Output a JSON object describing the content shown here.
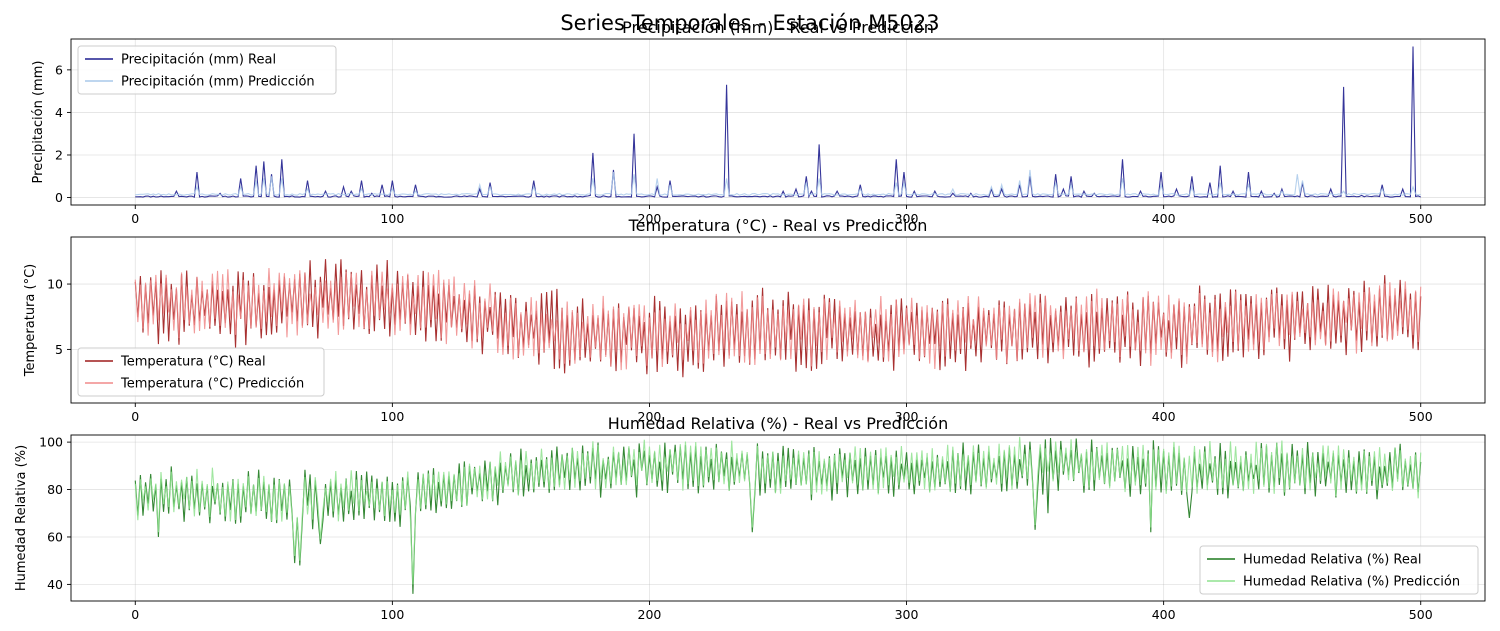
{
  "figure_title": "Series Temporales - Estación M5023",
  "chart_data": [
    {
      "type": "line",
      "title": "Precipitación (mm) - Real vs Predicción",
      "ylabel": "Precipitación (mm)",
      "xlabel": "",
      "xlim": [
        -25,
        525
      ],
      "ylim": [
        -0.35,
        7.45
      ],
      "xticks": [
        0,
        100,
        200,
        300,
        400,
        500
      ],
      "yticks": [
        0,
        2,
        4,
        6
      ],
      "grid": true,
      "legend": "top-left",
      "series": [
        {
          "name": "Precipitación (mm) Real",
          "color": "#1f1f8f",
          "base": 0.05,
          "noise": 0.06,
          "seed": 11,
          "spikes": [
            [
              16,
              0.3
            ],
            [
              24,
              1.2
            ],
            [
              33,
              0.2
            ],
            [
              41,
              0.9
            ],
            [
              47,
              1.5
            ],
            [
              50,
              1.7
            ],
            [
              53,
              1.1
            ],
            [
              57,
              1.8
            ],
            [
              67,
              0.8
            ],
            [
              74,
              0.3
            ],
            [
              81,
              0.5
            ],
            [
              84,
              0.3
            ],
            [
              88,
              0.8
            ],
            [
              92,
              0.2
            ],
            [
              96,
              0.6
            ],
            [
              100,
              0.8
            ],
            [
              109,
              0.6
            ],
            [
              134,
              0.4
            ],
            [
              138,
              0.7
            ],
            [
              155,
              0.8
            ],
            [
              177,
              0.1
            ],
            [
              178,
              2.1
            ],
            [
              186,
              1.3
            ],
            [
              194,
              3.0
            ],
            [
              203,
              0.5
            ],
            [
              208,
              0.8
            ],
            [
              230,
              5.3
            ],
            [
              252,
              0.3
            ],
            [
              257,
              0.4
            ],
            [
              261,
              1.0
            ],
            [
              263,
              0.3
            ],
            [
              266,
              2.5
            ],
            [
              273,
              0.3
            ],
            [
              282,
              0.6
            ],
            [
              296,
              1.8
            ],
            [
              299,
              1.2
            ],
            [
              303,
              0.3
            ],
            [
              311,
              0.3
            ],
            [
              318,
              0.2
            ],
            [
              325,
              0.2
            ],
            [
              333,
              0.4
            ],
            [
              337,
              0.4
            ],
            [
              344,
              0.6
            ],
            [
              348,
              1.0
            ],
            [
              358,
              1.1
            ],
            [
              361,
              0.4
            ],
            [
              364,
              1.0
            ],
            [
              369,
              0.3
            ],
            [
              373,
              0.2
            ],
            [
              384,
              1.8
            ],
            [
              391,
              0.3
            ],
            [
              399,
              1.2
            ],
            [
              405,
              0.4
            ],
            [
              411,
              1.0
            ],
            [
              418,
              0.7
            ],
            [
              422,
              1.5
            ],
            [
              427,
              0.3
            ],
            [
              433,
              1.2
            ],
            [
              438,
              0.3
            ],
            [
              443,
              0.2
            ],
            [
              446,
              0.4
            ],
            [
              454,
              0.7
            ],
            [
              465,
              0.4
            ],
            [
              470,
              5.2
            ],
            [
              477,
              0.1
            ],
            [
              485,
              0.6
            ],
            [
              493,
              0.4
            ],
            [
              497,
              7.1
            ]
          ]
        },
        {
          "name": "Precipitación (mm) Predicción",
          "color": "#a9c9ea",
          "base": 0.15,
          "noise": 0.08,
          "seed": 23,
          "spikes": [
            [
              24,
              0.5
            ],
            [
              41,
              0.5
            ],
            [
              47,
              0.8
            ],
            [
              50,
              0.9
            ],
            [
              53,
              1.0
            ],
            [
              57,
              0.9
            ],
            [
              67,
              0.4
            ],
            [
              88,
              0.4
            ],
            [
              100,
              0.4
            ],
            [
              109,
              0.3
            ],
            [
              134,
              0.6
            ],
            [
              138,
              0.5
            ],
            [
              155,
              0.5
            ],
            [
              178,
              0.9
            ],
            [
              186,
              1.2
            ],
            [
              194,
              1.1
            ],
            [
              203,
              0.9
            ],
            [
              208,
              0.6
            ],
            [
              230,
              0.9
            ],
            [
              261,
              0.7
            ],
            [
              266,
              0.9
            ],
            [
              282,
              0.4
            ],
            [
              296,
              0.7
            ],
            [
              299,
              0.7
            ],
            [
              318,
              0.4
            ],
            [
              333,
              0.5
            ],
            [
              337,
              0.6
            ],
            [
              344,
              0.8
            ],
            [
              348,
              1.3
            ],
            [
              358,
              0.7
            ],
            [
              364,
              0.6
            ],
            [
              384,
              0.9
            ],
            [
              399,
              0.6
            ],
            [
              411,
              0.5
            ],
            [
              422,
              0.7
            ],
            [
              433,
              0.6
            ],
            [
              446,
              0.3
            ],
            [
              452,
              1.1
            ],
            [
              454,
              0.8
            ],
            [
              470,
              0.3
            ],
            [
              485,
              0.4
            ],
            [
              497,
              0.5
            ]
          ]
        }
      ]
    },
    {
      "type": "line",
      "title": "Temperatura (°C) - Real vs Predicción",
      "ylabel": "Temperatura (°C)",
      "xlabel": "",
      "xlim": [
        -25,
        525
      ],
      "ylim": [
        0.9,
        13.6
      ],
      "xticks": [
        0,
        100,
        200,
        300,
        400,
        500
      ],
      "yticks": [
        5,
        10
      ],
      "grid": true,
      "legend": "bottom-left",
      "series": [
        {
          "name": "Temperatura (°C) Real",
          "color": "#9e1b1b",
          "amp": 2.8,
          "seed": 5,
          "trend": [
            [
              0,
              8.5
            ],
            [
              40,
              8.3
            ],
            [
              80,
              9.0
            ],
            [
              120,
              8.2
            ],
            [
              150,
              6.5
            ],
            [
              200,
              6.0
            ],
            [
              250,
              6.5
            ],
            [
              300,
              6.3
            ],
            [
              350,
              6.8
            ],
            [
              400,
              6.5
            ],
            [
              450,
              7.2
            ],
            [
              500,
              7.8
            ]
          ]
        },
        {
          "name": "Temperatura (°C) Predicción",
          "color": "#f08a8a",
          "amp": 2.6,
          "seed": 7,
          "trend": [
            [
              0,
              8.6
            ],
            [
              40,
              8.4
            ],
            [
              80,
              9.0
            ],
            [
              120,
              8.3
            ],
            [
              150,
              6.6
            ],
            [
              200,
              6.2
            ],
            [
              250,
              6.6
            ],
            [
              300,
              6.4
            ],
            [
              350,
              6.9
            ],
            [
              400,
              6.6
            ],
            [
              450,
              7.3
            ],
            [
              500,
              7.9
            ]
          ]
        }
      ]
    },
    {
      "type": "line",
      "title": "Humedad Relativa (%) - Real vs Predicción",
      "ylabel": "Humedad Relativa (%)",
      "xlabel": "",
      "xlim": [
        -25,
        525
      ],
      "ylim": [
        33,
        103
      ],
      "xticks": [
        0,
        100,
        200,
        300,
        400,
        500
      ],
      "yticks": [
        40,
        60,
        80,
        100
      ],
      "grid": true,
      "legend": "bottom-right",
      "series": [
        {
          "name": "Humedad Relativa (%) Real",
          "color": "#1e7a1e",
          "amp": 11,
          "seed": 3,
          "trend": [
            [
              0,
              78
            ],
            [
              50,
              76
            ],
            [
              100,
              76
            ],
            [
              150,
              86
            ],
            [
              200,
              90
            ],
            [
              250,
              88
            ],
            [
              300,
              87
            ],
            [
              350,
              90
            ],
            [
              400,
              88
            ],
            [
              450,
              88
            ],
            [
              500,
              87
            ]
          ],
          "dips": [
            [
              108,
              36
            ],
            [
              62,
              49
            ],
            [
              64,
              48
            ],
            [
              72,
              57
            ],
            [
              9,
              60
            ],
            [
              240,
              62
            ],
            [
              350,
              63
            ],
            [
              355,
              70
            ],
            [
              395,
              62
            ],
            [
              410,
              68
            ]
          ]
        },
        {
          "name": "Humedad Relativa (%) Predicción",
          "color": "#8fe28f",
          "amp": 10,
          "seed": 9,
          "trend": [
            [
              0,
              79
            ],
            [
              50,
              77
            ],
            [
              100,
              77
            ],
            [
              150,
              87
            ],
            [
              200,
              91
            ],
            [
              250,
              89
            ],
            [
              300,
              88
            ],
            [
              350,
              91
            ],
            [
              400,
              89
            ],
            [
              450,
              89
            ],
            [
              500,
              88
            ]
          ],
          "dips": [
            [
              108,
              40
            ],
            [
              62,
              52
            ],
            [
              64,
              50
            ],
            [
              72,
              59
            ],
            [
              9,
              62
            ],
            [
              240,
              64
            ],
            [
              350,
              65
            ],
            [
              395,
              64
            ]
          ]
        }
      ]
    }
  ]
}
